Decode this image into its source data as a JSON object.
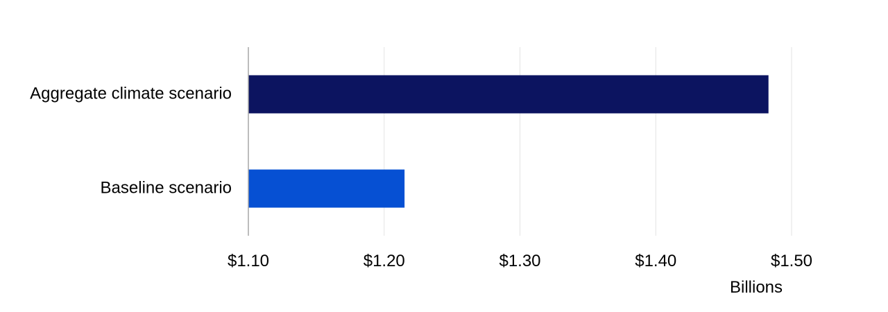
{
  "chart_data": {
    "type": "bar",
    "orientation": "horizontal",
    "categories": [
      "Aggregate climate scenario",
      "Baseline scenario"
    ],
    "values": [
      1.483,
      1.215
    ],
    "colors": [
      "#0c1460",
      "#0650d3"
    ],
    "x_ticks": [
      1.1,
      1.2,
      1.3,
      1.4,
      1.5
    ],
    "x_tick_labels": [
      "$1.10",
      "$1.20",
      "$1.30",
      "$1.40",
      "$1.50"
    ],
    "xlim": [
      1.1,
      1.5
    ],
    "x_unit_label": "Billions",
    "title": "",
    "xlabel": "",
    "ylabel": "",
    "grid": "vertical",
    "legend": "none"
  }
}
